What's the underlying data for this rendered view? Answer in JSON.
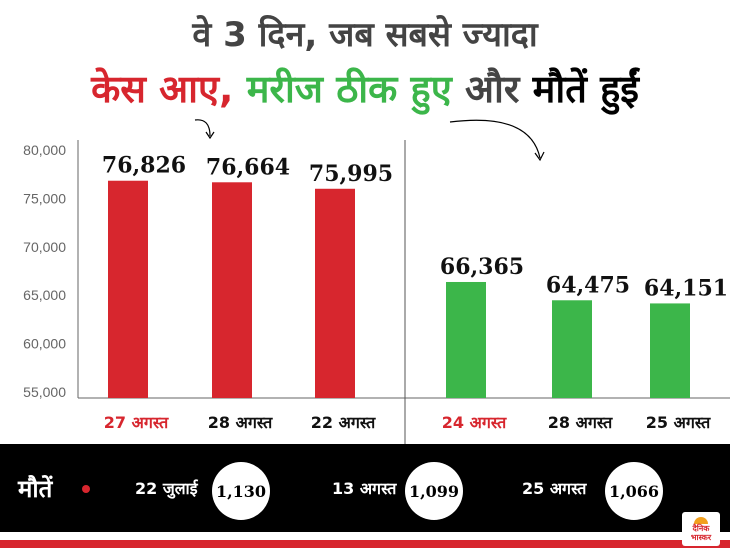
{
  "title_line1": "वे 3 दिन, जब सबसे ज्यादा",
  "title_line2": {
    "part1": "केस आए,",
    "part2": "मरीज ठीक हुए",
    "part3": "और",
    "part4": "मौतें हुईं"
  },
  "colors": {
    "cases": "#d7262e",
    "recovered": "#3cb64a",
    "deaths": "#000000",
    "title_gray": "#444444"
  },
  "chart_data": [
    {
      "type": "bar",
      "categories": [
        "27 अगस्त",
        "28 अगस्त",
        "22 अगस्त"
      ],
      "values": [
        76826,
        76664,
        75995
      ],
      "value_labels": [
        "76,826",
        "76,664",
        "75,995"
      ],
      "color": "#d7262e",
      "highlight_category_color": "#d7262e",
      "ylim": [
        55000,
        80000
      ],
      "yticks": [
        "55,000",
        "60,000",
        "65,000",
        "70,000",
        "75,000",
        "80,000"
      ]
    },
    {
      "type": "bar",
      "categories": [
        "24 अगस्त",
        "28 अगस्त",
        "25 अगस्त"
      ],
      "values": [
        66365,
        64475,
        64151
      ],
      "value_labels": [
        "66,365",
        "64,475",
        "64,151"
      ],
      "color": "#3cb64a",
      "highlight_category_color": "#d7262e",
      "ylim": [
        55000,
        80000
      ]
    }
  ],
  "deaths": {
    "label": "मौतें",
    "items": [
      {
        "date": "22 जुलाई",
        "value": "1,130"
      },
      {
        "date": "13 अगस्त",
        "value": "1,099"
      },
      {
        "date": "25 अगस्त",
        "value": "1,066"
      }
    ]
  },
  "logo": {
    "line1": "दैनिक",
    "line2": "भास्कर"
  }
}
